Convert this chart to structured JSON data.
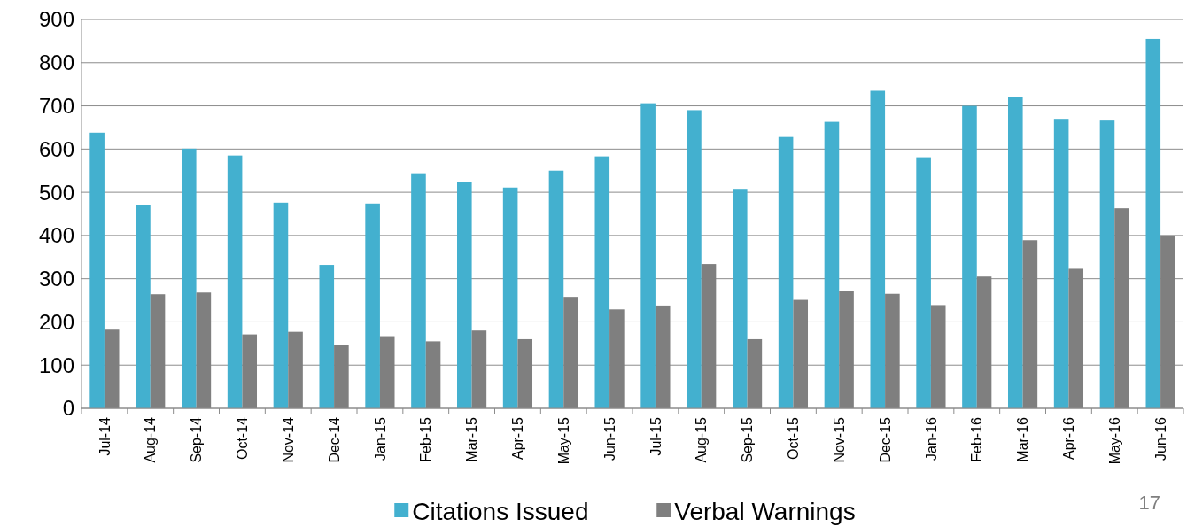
{
  "chart_data": {
    "type": "bar",
    "categories": [
      "Jul-14",
      "Aug-14",
      "Sep-14",
      "Oct-14",
      "Nov-14",
      "Dec-14",
      "Jan-15",
      "Feb-15",
      "Mar-15",
      "Apr-15",
      "May-15",
      "Jun-15",
      "Jul-15",
      "Aug-15",
      "Sep-15",
      "Oct-15",
      "Nov-15",
      "Dec-15",
      "Jan-16",
      "Feb-16",
      "Mar-16",
      "Apr-16",
      "May-16",
      "Jun-16"
    ],
    "series": [
      {
        "name": "Citations Issued",
        "color": "#43b0cf",
        "values": [
          638,
          470,
          601,
          585,
          476,
          332,
          474,
          544,
          523,
          511,
          550,
          583,
          706,
          690,
          508,
          628,
          663,
          735,
          581,
          700,
          720,
          670,
          666,
          855
        ]
      },
      {
        "name": "Verbal Warnings",
        "color": "#7f7f7f",
        "values": [
          182,
          264,
          268,
          171,
          177,
          147,
          167,
          155,
          180,
          160,
          258,
          229,
          238,
          334,
          160,
          251,
          271,
          265,
          239,
          305,
          389,
          323,
          463,
          400
        ]
      }
    ],
    "ylim": [
      0,
      900
    ],
    "yticks": [
      0,
      100,
      200,
      300,
      400,
      500,
      600,
      700,
      800,
      900
    ],
    "grid": "y",
    "legend": "bottom",
    "annotations": [
      "17"
    ]
  }
}
